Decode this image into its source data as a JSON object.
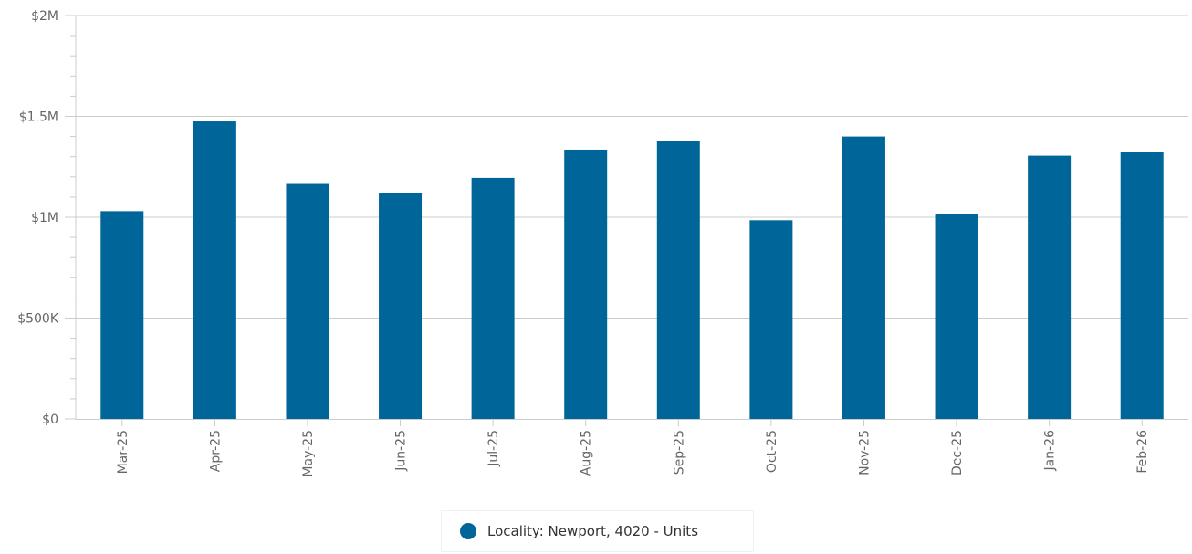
{
  "chart_data": {
    "type": "bar",
    "title": "",
    "xlabel": "",
    "ylabel": "",
    "categories": [
      "Mar-25",
      "Apr-25",
      "May-25",
      "Jun-25",
      "Jul-25",
      "Aug-25",
      "Sep-25",
      "Oct-25",
      "Nov-25",
      "Dec-25",
      "Jan-26",
      "Feb-26"
    ],
    "series": [
      {
        "name": "Locality: Newport, 4020 - Units",
        "color": "#006699",
        "values": [
          1030000,
          1475000,
          1165000,
          1120000,
          1195000,
          1335000,
          1380000,
          985000,
          1400000,
          1015000,
          1305000,
          1325000
        ]
      }
    ],
    "ylim": [
      0,
      2000000
    ],
    "y_ticks": [
      {
        "value": 0,
        "label": "$0"
      },
      {
        "value": 500000,
        "label": "$500K"
      },
      {
        "value": 1000000,
        "label": "$1M"
      },
      {
        "value": 1500000,
        "label": "$1.5M"
      },
      {
        "value": 2000000,
        "label": "$2M"
      }
    ],
    "grid": true,
    "legend_position": "bottom-center"
  },
  "legend": {
    "label": "Locality: Newport, 4020 - Units",
    "color": "#006699"
  }
}
